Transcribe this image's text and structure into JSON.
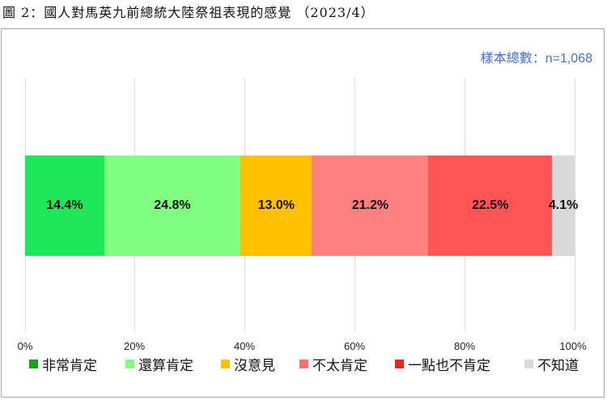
{
  "title": "圖 2：國人對馬英九前總統大陸祭祖表現的感覺 （2023/4）",
  "sample_label": "樣本總數：n=1,068",
  "axis": {
    "ticks": [
      "0%",
      "20%",
      "40%",
      "60%",
      "80%",
      "100%"
    ]
  },
  "segments": [
    {
      "label": "非常肯定",
      "value_label": "14.4%",
      "bar_color": "#1ee85a",
      "legend_color": "#1aa11a"
    },
    {
      "label": "還算肯定",
      "value_label": "24.8%",
      "bar_color": "#80ff80",
      "legend_color": "#80ff80"
    },
    {
      "label": "沒意見",
      "value_label": "13.0%",
      "bar_color": "#ffc000",
      "legend_color": "#ffc000"
    },
    {
      "label": "不太肯定",
      "value_label": "21.2%",
      "bar_color": "#ff8080",
      "legend_color": "#ff7070"
    },
    {
      "label": "一點也不肯定",
      "value_label": "22.5%",
      "bar_color": "#ff5555",
      "legend_color": "#e8281a"
    },
    {
      "label": "不知道",
      "value_label": "4.1%",
      "bar_color": "#d9d9d9",
      "legend_color": "#d9d9d9"
    }
  ],
  "chart_data": {
    "type": "bar",
    "orientation": "horizontal-stacked-100",
    "title": "圖 2：國人對馬英九前總統大陸祭祖表現的感覺 （2023/4）",
    "annotation": "樣本總數：n=1,068",
    "categories": [
      "非常肯定",
      "還算肯定",
      "沒意見",
      "不太肯定",
      "一點也不肯定",
      "不知道"
    ],
    "values": [
      14.4,
      24.8,
      13.0,
      21.2,
      22.5,
      4.1
    ],
    "series": [
      {
        "name": "非常肯定",
        "values": [
          14.4
        ]
      },
      {
        "name": "還算肯定",
        "values": [
          24.8
        ]
      },
      {
        "name": "沒意見",
        "values": [
          13.0
        ]
      },
      {
        "name": "不太肯定",
        "values": [
          21.2
        ]
      },
      {
        "name": "一點也不肯定",
        "values": [
          22.5
        ]
      },
      {
        "name": "不知道",
        "values": [
          4.1
        ]
      }
    ],
    "xlabel": "",
    "ylabel": "",
    "xlim": [
      0,
      100
    ],
    "x_ticks": [
      "0%",
      "20%",
      "40%",
      "60%",
      "80%",
      "100%"
    ],
    "grid": true,
    "legend_position": "bottom"
  }
}
